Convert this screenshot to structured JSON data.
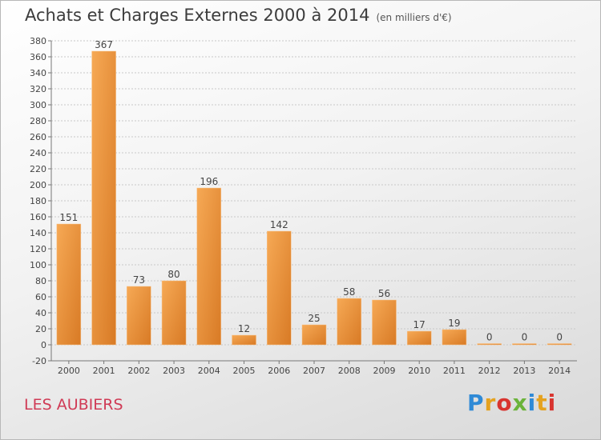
{
  "header": {
    "title": "Achats et Charges Externes 2000 à 2014",
    "subtitle": "(en milliers d'€)"
  },
  "footer": {
    "commune": "LES AUBIERS",
    "logo_text": "Proxiti"
  },
  "colors": {
    "bar_light": "#f6a955",
    "bar_dark": "#d87a25",
    "logo": [
      "#2f8ad6",
      "#e5a21f",
      "#d8342f",
      "#6bb33a",
      "#2f8ad6",
      "#e5a21f",
      "#d8342f"
    ]
  },
  "chart_data": {
    "type": "bar",
    "title": "Achats et Charges Externes 2000 à 2014",
    "xlabel": "",
    "ylabel": "",
    "categories": [
      "2000",
      "2001",
      "2002",
      "2003",
      "2004",
      "2005",
      "2006",
      "2007",
      "2008",
      "2009",
      "2010",
      "2011",
      "2012",
      "2013",
      "2014"
    ],
    "values": [
      151,
      367,
      73,
      80,
      196,
      12,
      142,
      25,
      58,
      56,
      17,
      19,
      0,
      0,
      0
    ],
    "data_labels": [
      "151",
      "367",
      "73",
      "80",
      "196",
      "12",
      "142",
      "25",
      "58",
      "56",
      "17",
      "19",
      "0",
      "0",
      "0"
    ],
    "ylim": [
      -20,
      380
    ],
    "yticks": [
      -20,
      0,
      20,
      40,
      60,
      80,
      100,
      120,
      140,
      160,
      180,
      200,
      220,
      240,
      260,
      280,
      300,
      320,
      340,
      360,
      380
    ],
    "grid": true,
    "legend": "none"
  }
}
